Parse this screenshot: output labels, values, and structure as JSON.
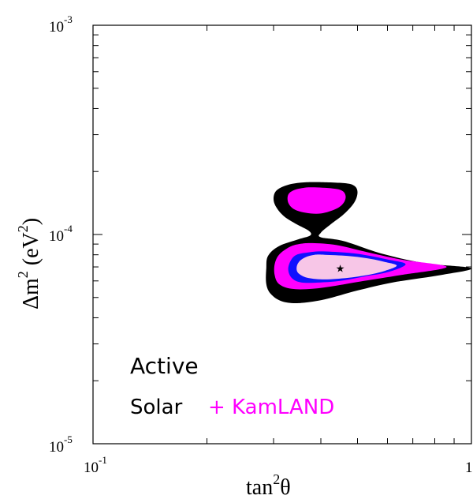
{
  "chart_data": {
    "type": "contour",
    "x_axis": {
      "label_base": "tan",
      "label_exp": "2",
      "label_symbol": "θ",
      "scale": "log",
      "range": [
        0.1,
        1.0
      ],
      "tick_labels": [
        {
          "value": 0.1,
          "base": "10",
          "exp": "-1"
        },
        {
          "value": 1.0,
          "base": "1",
          "exp": ""
        }
      ]
    },
    "y_axis": {
      "label_prefix": "Δm",
      "label_exp1": "2",
      "label_mid": " (eV",
      "label_exp2": "2",
      "label_suffix": ")",
      "scale": "log",
      "range": [
        1e-05,
        0.001
      ],
      "tick_labels": [
        {
          "value": 0.001,
          "base": "10",
          "exp": "-3"
        },
        {
          "value": 0.0001,
          "base": "10",
          "exp": "-4"
        },
        {
          "value": 1e-05,
          "base": "10",
          "exp": "-5"
        }
      ]
    },
    "best_fit": {
      "x": 0.45,
      "y": 6.9e-05,
      "marker": "★"
    },
    "regions": [
      {
        "name": "outer",
        "color": "#000000",
        "lobes": [
          [
            [
              0.39,
              0.000178
            ],
            [
              0.46,
              0.000176
            ],
            [
              0.49,
              0.000171
            ],
            [
              0.5,
              0.000159
            ],
            [
              0.49,
              0.000142
            ],
            [
              0.46,
              0.000125
            ],
            [
              0.425,
              0.000112
            ],
            [
              0.4,
              0.000102
            ],
            [
              0.4,
              9.7e-05
            ],
            [
              0.46,
              9.3e-05
            ],
            [
              0.58,
              8.1e-05
            ],
            [
              0.75,
              7.3e-05
            ],
            [
              1.0,
              6.9e-05
            ],
            [
              0.83,
              6.4e-05
            ],
            [
              0.62,
              5.9e-05
            ],
            [
              0.5,
              5.4e-05
            ],
            [
              0.41,
              4.9e-05
            ],
            [
              0.35,
              4.7e-05
            ],
            [
              0.315,
              4.8e-05
            ],
            [
              0.295,
              5.2e-05
            ],
            [
              0.287,
              5.8e-05
            ],
            [
              0.287,
              6.9e-05
            ],
            [
              0.29,
              7.9e-05
            ],
            [
              0.31,
              8.8e-05
            ],
            [
              0.35,
              9.5e-05
            ],
            [
              0.375,
              9.9e-05
            ],
            [
              0.372,
              0.000104
            ],
            [
              0.345,
              0.000112
            ],
            [
              0.32,
              0.000122
            ],
            [
              0.305,
              0.000135
            ],
            [
              0.3,
              0.000148
            ],
            [
              0.305,
              0.000162
            ],
            [
              0.325,
              0.000172
            ],
            [
              0.355,
              0.000177
            ]
          ]
        ]
      },
      {
        "name": "magenta",
        "color": "#ff00ff",
        "lobes": [
          [
            [
              0.38,
              0.000168
            ],
            [
              0.43,
              0.000166
            ],
            [
              0.455,
              0.000162
            ],
            [
              0.465,
              0.000153
            ],
            [
              0.46,
              0.000142
            ],
            [
              0.44,
              0.000133
            ],
            [
              0.4,
              0.000126
            ],
            [
              0.365,
              0.000127
            ],
            [
              0.34,
              0.000132
            ],
            [
              0.328,
              0.000142
            ],
            [
              0.328,
              0.000155
            ],
            [
              0.34,
              0.000163
            ],
            [
              0.36,
              0.000167
            ]
          ],
          [
            [
              0.38,
              9.1e-05
            ],
            [
              0.44,
              8.9e-05
            ],
            [
              0.52,
              8.3e-05
            ],
            [
              0.65,
              7.6e-05
            ],
            [
              0.86,
              7e-05
            ],
            [
              0.65,
              6.4e-05
            ],
            [
              0.52,
              6e-05
            ],
            [
              0.44,
              5.7e-05
            ],
            [
              0.38,
              5.5e-05
            ],
            [
              0.335,
              5.5e-05
            ],
            [
              0.31,
              5.8e-05
            ],
            [
              0.302,
              6.4e-05
            ],
            [
              0.302,
              7.2e-05
            ],
            [
              0.31,
              8e-05
            ],
            [
              0.33,
              8.7e-05
            ],
            [
              0.35,
              9e-05
            ]
          ]
        ]
      },
      {
        "name": "blue",
        "color": "#1010ff",
        "lobes": [
          [
            [
              0.4,
              8.3e-05
            ],
            [
              0.46,
              8.2e-05
            ],
            [
              0.52,
              8e-05
            ],
            [
              0.6,
              7.6e-05
            ],
            [
              0.67,
              7.2e-05
            ],
            [
              0.6,
              6.6e-05
            ],
            [
              0.52,
              6.3e-05
            ],
            [
              0.45,
              6e-05
            ],
            [
              0.4,
              5.9e-05
            ],
            [
              0.355,
              5.9e-05
            ],
            [
              0.335,
              6.2e-05
            ],
            [
              0.328,
              6.8e-05
            ],
            [
              0.333,
              7.5e-05
            ],
            [
              0.345,
              8e-05
            ],
            [
              0.37,
              8.2e-05
            ]
          ]
        ]
      },
      {
        "name": "pink",
        "color": "#f7c6e7",
        "lobes": [
          [
            [
              0.41,
              8e-05
            ],
            [
              0.47,
              7.9e-05
            ],
            [
              0.53,
              7.7e-05
            ],
            [
              0.59,
              7.4e-05
            ],
            [
              0.635,
              7.1e-05
            ],
            [
              0.59,
              6.7e-05
            ],
            [
              0.53,
              6.4e-05
            ],
            [
              0.47,
              6.2e-05
            ],
            [
              0.41,
              6.1e-05
            ],
            [
              0.37,
              6.2e-05
            ],
            [
              0.35,
              6.5e-05
            ],
            [
              0.345,
              6.9e-05
            ],
            [
              0.35,
              7.4e-05
            ],
            [
              0.365,
              7.8e-05
            ],
            [
              0.385,
              8e-05
            ]
          ]
        ]
      }
    ],
    "annotations": [
      {
        "id": "active",
        "text": "Active",
        "color": "#000000"
      },
      {
        "id": "solar",
        "text": "Solar",
        "color": "#000000"
      },
      {
        "id": "kamland",
        "text": "+ KamLAND",
        "color": "#ff00ff"
      }
    ]
  }
}
